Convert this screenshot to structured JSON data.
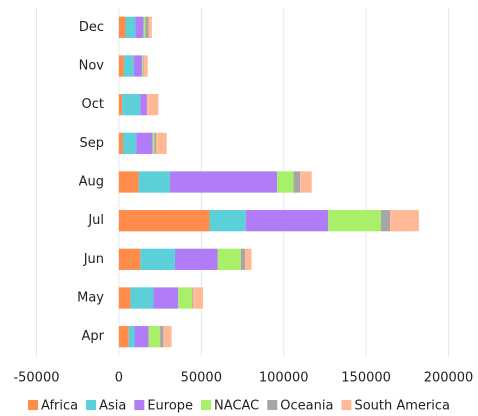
{
  "chart_data": {
    "type": "bar",
    "orientation": "horizontal",
    "stacked": true,
    "categories": [
      "Dec",
      "Nov",
      "Oct",
      "Sep",
      "Aug",
      "Jul",
      "Jun",
      "May",
      "Apr"
    ],
    "series": [
      {
        "name": "Africa",
        "color": "#ff8c4a",
        "values": [
          4000,
          3000,
          2000,
          2500,
          12000,
          55000,
          13000,
          7000,
          6000
        ]
      },
      {
        "name": "Asia",
        "color": "#5bd0d9",
        "values": [
          6000,
          6000,
          11000,
          8000,
          19000,
          22000,
          21000,
          14000,
          3500
        ]
      },
      {
        "name": "Europe",
        "color": "#b07cf7",
        "values": [
          5000,
          5000,
          4000,
          10000,
          65000,
          50000,
          26000,
          15000,
          8500
        ]
      },
      {
        "name": "NACAC",
        "color": "#a8ef6a",
        "values": [
          1000,
          500,
          0,
          1000,
          10000,
          32000,
          14000,
          8500,
          7000
        ]
      },
      {
        "name": "Oceania",
        "color": "#a6a6a6",
        "values": [
          2000,
          500,
          0,
          1000,
          4000,
          5500,
          2500,
          500,
          2000
        ]
      },
      {
        "name": "South America",
        "color": "#ffb996",
        "values": [
          2000,
          2500,
          7000,
          6500,
          7000,
          17500,
          4000,
          6000,
          5000
        ]
      }
    ],
    "xlim": [
      -60000,
      210000
    ],
    "xticks": [
      -50000,
      0,
      50000,
      100000,
      150000,
      200000
    ],
    "grid": true,
    "legend": "bottom"
  }
}
